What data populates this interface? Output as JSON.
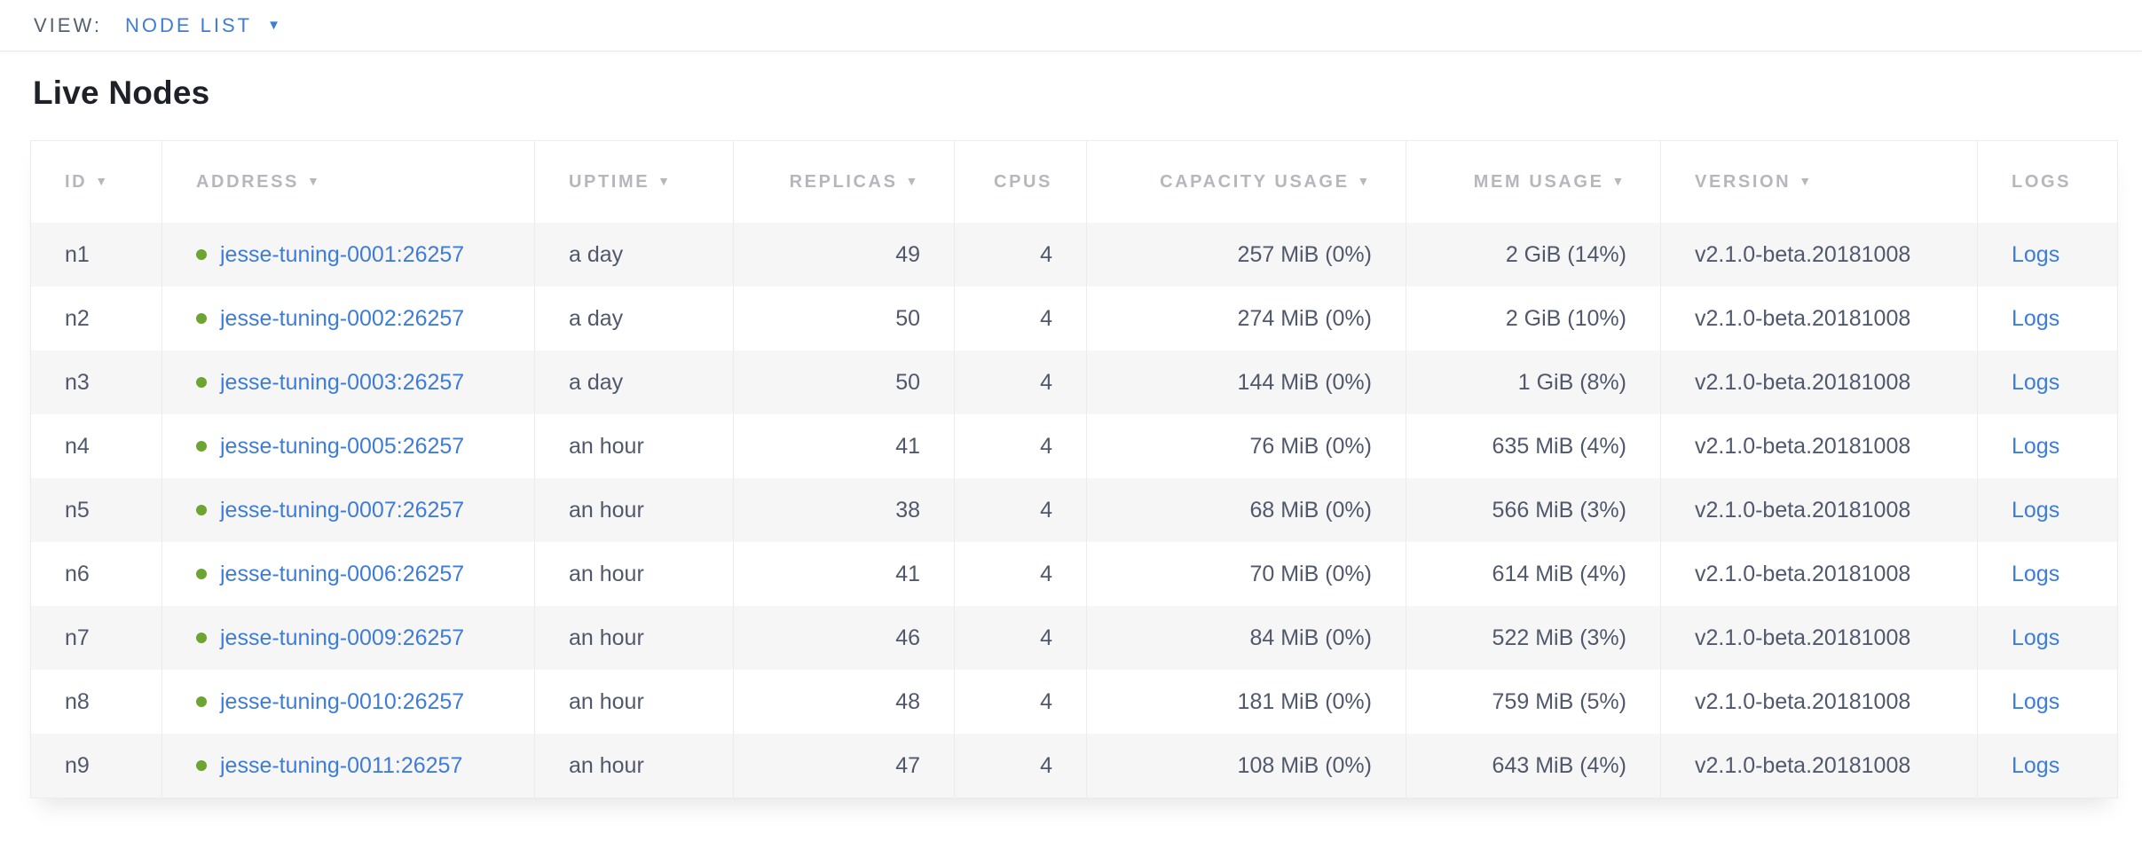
{
  "view_bar": {
    "label": "VIEW:",
    "selected_view": "NODE LIST",
    "caret_icon": "caret-down"
  },
  "page": {
    "title": "Live Nodes"
  },
  "colors": {
    "link_blue": "#3e7cd9",
    "node_healthy_green": "#6ca532",
    "header_gray": "#b5b7bc",
    "body_text": "#51586c",
    "row_stripe": "#f6f6f7"
  },
  "table": {
    "columns": [
      {
        "key": "id",
        "label": "ID",
        "sort_arrow": true,
        "align": "left"
      },
      {
        "key": "address",
        "label": "ADDRESS",
        "sort_arrow": true,
        "align": "left"
      },
      {
        "key": "uptime",
        "label": "UPTIME",
        "sort_arrow": true,
        "align": "left"
      },
      {
        "key": "replicas",
        "label": "REPLICAS",
        "sort_arrow": true,
        "align": "right"
      },
      {
        "key": "cpus",
        "label": "CPUS",
        "sort_arrow": false,
        "align": "right"
      },
      {
        "key": "capacity_usage",
        "label": "CAPACITY USAGE",
        "sort_arrow": true,
        "align": "right"
      },
      {
        "key": "mem_usage",
        "label": "MEM USAGE",
        "sort_arrow": true,
        "align": "right"
      },
      {
        "key": "version",
        "label": "VERSION",
        "sort_arrow": true,
        "align": "left"
      },
      {
        "key": "logs",
        "label": "LOGS",
        "sort_arrow": false,
        "align": "left"
      }
    ],
    "rows": [
      {
        "id": "n1",
        "status": "healthy",
        "address": "jesse-tuning-0001:26257",
        "uptime": "a day",
        "replicas": "49",
        "cpus": "4",
        "capacity_usage": "257 MiB (0%)",
        "mem_usage": "2 GiB (14%)",
        "version": "v2.1.0-beta.20181008",
        "logs_label": "Logs"
      },
      {
        "id": "n2",
        "status": "healthy",
        "address": "jesse-tuning-0002:26257",
        "uptime": "a day",
        "replicas": "50",
        "cpus": "4",
        "capacity_usage": "274 MiB (0%)",
        "mem_usage": "2 GiB (10%)",
        "version": "v2.1.0-beta.20181008",
        "logs_label": "Logs"
      },
      {
        "id": "n3",
        "status": "healthy",
        "address": "jesse-tuning-0003:26257",
        "uptime": "a day",
        "replicas": "50",
        "cpus": "4",
        "capacity_usage": "144 MiB (0%)",
        "mem_usage": "1 GiB (8%)",
        "version": "v2.1.0-beta.20181008",
        "logs_label": "Logs"
      },
      {
        "id": "n4",
        "status": "healthy",
        "address": "jesse-tuning-0005:26257",
        "uptime": "an hour",
        "replicas": "41",
        "cpus": "4",
        "capacity_usage": "76 MiB (0%)",
        "mem_usage": "635 MiB (4%)",
        "version": "v2.1.0-beta.20181008",
        "logs_label": "Logs"
      },
      {
        "id": "n5",
        "status": "healthy",
        "address": "jesse-tuning-0007:26257",
        "uptime": "an hour",
        "replicas": "38",
        "cpus": "4",
        "capacity_usage": "68 MiB (0%)",
        "mem_usage": "566 MiB (3%)",
        "version": "v2.1.0-beta.20181008",
        "logs_label": "Logs"
      },
      {
        "id": "n6",
        "status": "healthy",
        "address": "jesse-tuning-0006:26257",
        "uptime": "an hour",
        "replicas": "41",
        "cpus": "4",
        "capacity_usage": "70 MiB (0%)",
        "mem_usage": "614 MiB (4%)",
        "version": "v2.1.0-beta.20181008",
        "logs_label": "Logs"
      },
      {
        "id": "n7",
        "status": "healthy",
        "address": "jesse-tuning-0009:26257",
        "uptime": "an hour",
        "replicas": "46",
        "cpus": "4",
        "capacity_usage": "84 MiB (0%)",
        "mem_usage": "522 MiB (3%)",
        "version": "v2.1.0-beta.20181008",
        "logs_label": "Logs"
      },
      {
        "id": "n8",
        "status": "healthy",
        "address": "jesse-tuning-0010:26257",
        "uptime": "an hour",
        "replicas": "48",
        "cpus": "4",
        "capacity_usage": "181 MiB (0%)",
        "mem_usage": "759 MiB (5%)",
        "version": "v2.1.0-beta.20181008",
        "logs_label": "Logs"
      },
      {
        "id": "n9",
        "status": "healthy",
        "address": "jesse-tuning-0011:26257",
        "uptime": "an hour",
        "replicas": "47",
        "cpus": "4",
        "capacity_usage": "108 MiB (0%)",
        "mem_usage": "643 MiB (4%)",
        "version": "v2.1.0-beta.20181008",
        "logs_label": "Logs"
      }
    ]
  }
}
